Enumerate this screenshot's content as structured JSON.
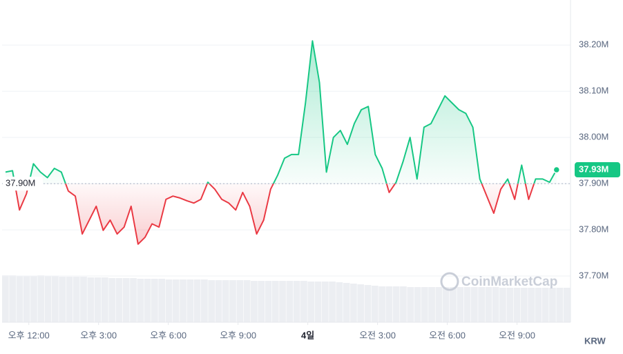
{
  "chart_data": {
    "type": "line",
    "currency": "KRW",
    "watermark": "CoinMarketCap",
    "xlim": [
      10.85,
      35.3
    ],
    "xticks": [
      {
        "value": 12,
        "label": "오후 12:00"
      },
      {
        "value": 15,
        "label": "오후 3:00"
      },
      {
        "value": 18,
        "label": "오후 6:00"
      },
      {
        "value": 21,
        "label": "오후 9:00"
      },
      {
        "value": 24,
        "label": "4일"
      },
      {
        "value": 27,
        "label": "오전 3:00"
      },
      {
        "value": 30,
        "label": "오전 6:00"
      },
      {
        "value": 33,
        "label": "오전 9:00"
      }
    ],
    "ylim": [
      37600000,
      38290000
    ],
    "yticks": [
      {
        "value": 37700000,
        "label": "37.70M"
      },
      {
        "value": 37800000,
        "label": "37.80M"
      },
      {
        "value": 37900000,
        "label": "37.90M"
      },
      {
        "value": 38000000,
        "label": "38.00M"
      },
      {
        "value": 38100000,
        "label": "38.10M"
      },
      {
        "value": 38200000,
        "label": "38.20M"
      }
    ],
    "grid": true,
    "baseline": {
      "value": 37900000,
      "label": "37.90M"
    },
    "current": {
      "value": 37930000,
      "label": "37.93M"
    },
    "series": [
      {
        "color_above": "#16c784",
        "color_below": "#ea3943",
        "x": [
          11.0,
          11.3,
          11.6,
          11.9,
          12.2,
          12.5,
          12.8,
          13.1,
          13.4,
          13.7,
          14.0,
          14.3,
          14.6,
          14.9,
          15.2,
          15.5,
          15.8,
          16.1,
          16.4,
          16.7,
          17.0,
          17.3,
          17.6,
          17.9,
          18.2,
          18.5,
          18.8,
          19.1,
          19.4,
          19.7,
          20.0,
          20.3,
          20.6,
          20.9,
          21.2,
          21.5,
          21.8,
          22.1,
          22.4,
          22.7,
          23.0,
          23.3,
          23.6,
          23.9,
          24.2,
          24.5,
          24.8,
          25.1,
          25.4,
          25.7,
          26.0,
          26.3,
          26.6,
          26.9,
          27.2,
          27.5,
          27.8,
          28.1,
          28.4,
          28.7,
          29.0,
          29.3,
          29.6,
          29.9,
          30.2,
          30.5,
          30.8,
          31.1,
          31.4,
          31.7,
          32.0,
          32.3,
          32.6,
          32.9,
          33.2,
          33.5,
          33.8,
          34.1,
          34.4,
          34.7
        ],
        "values": [
          37925000,
          37928000,
          37843000,
          37878000,
          37943000,
          37925000,
          37913000,
          37933000,
          37925000,
          37884000,
          37873000,
          37791000,
          37821000,
          37851000,
          37799000,
          37821000,
          37791000,
          37806000,
          37851000,
          37769000,
          37784000,
          37813000,
          37806000,
          37866000,
          37873000,
          37869000,
          37863000,
          37858000,
          37866000,
          37903000,
          37888000,
          37866000,
          37858000,
          37843000,
          37881000,
          37851000,
          37791000,
          37821000,
          37888000,
          37918000,
          37955000,
          37963000,
          37963000,
          38075000,
          38209000,
          38119000,
          37925000,
          38000000,
          38015000,
          37985000,
          38030000,
          38060000,
          38067000,
          37963000,
          37933000,
          37881000,
          37903000,
          37948000,
          38000000,
          37910000,
          38022000,
          38030000,
          38060000,
          38090000,
          38075000,
          38060000,
          38052000,
          38022000,
          37910000,
          37873000,
          37836000,
          37888000,
          37910000,
          37866000,
          37940000,
          37866000,
          37910000,
          37910000,
          37903000,
          37930000
        ]
      }
    ],
    "volume": {
      "color": "#eceef2",
      "ylim": [
        0,
        100
      ],
      "values": [
        68,
        68,
        67,
        67,
        67,
        68,
        67,
        67,
        66,
        66,
        66,
        66,
        65,
        65,
        65,
        64,
        64,
        64,
        64,
        63,
        63,
        63,
        63,
        62,
        62,
        62,
        62,
        62,
        62,
        61,
        61,
        61,
        61,
        61,
        61,
        60,
        60,
        60,
        60,
        60,
        60,
        60,
        60,
        59,
        59,
        59,
        59,
        58,
        57,
        56,
        55,
        54,
        53,
        52,
        52,
        52,
        52,
        51,
        51,
        51,
        51,
        51,
        51,
        51,
        51,
        51,
        51,
        51,
        51,
        51,
        50,
        50,
        50,
        50,
        50,
        50,
        50,
        50,
        50,
        50
      ]
    }
  }
}
